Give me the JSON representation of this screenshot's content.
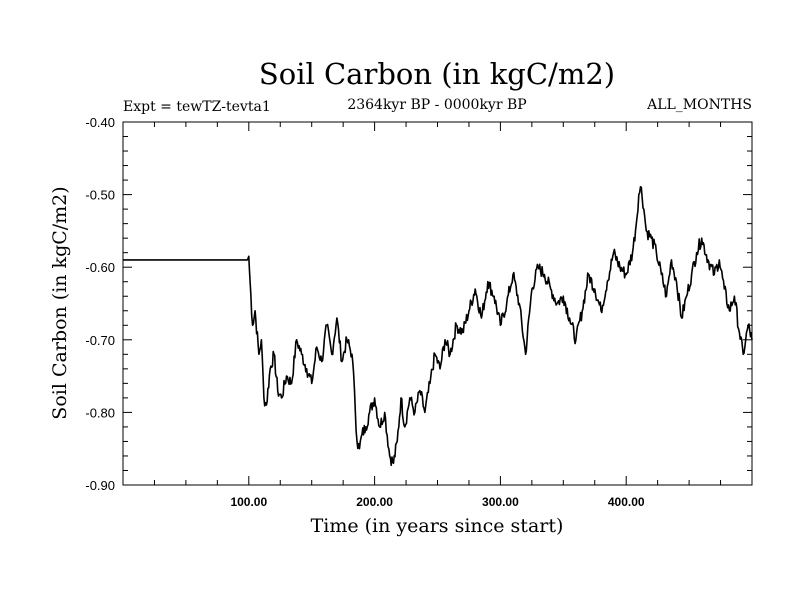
{
  "chart_data": {
    "type": "line",
    "title": "Soil Carbon (in kgC/m2)",
    "subtitle_left": "Expt = tewTZ-tevta1",
    "subtitle_center": "2364kyr BP - 0000kyr BP",
    "subtitle_right": "ALL_MONTHS",
    "xlabel": "Time (in years since start)",
    "ylabel": "Soil Carbon (in kgC/m2)",
    "xlim": [
      0,
      500
    ],
    "ylim": [
      -0.9,
      -0.4
    ],
    "x_ticks": [
      100,
      200,
      300,
      400
    ],
    "x_tick_labels": [
      "100.00",
      "200.00",
      "300.00",
      "400.00"
    ],
    "y_ticks": [
      -0.4,
      -0.5,
      -0.6,
      -0.7,
      -0.8,
      -0.9
    ],
    "y_tick_labels": [
      "-0.40",
      "-0.50",
      "-0.60",
      "-0.70",
      "-0.80",
      "-0.90"
    ],
    "series": [
      {
        "name": "Soil Carbon",
        "x": [
          0,
          99,
          100,
          101,
          103,
          105,
          108,
          110,
          112,
          114,
          117,
          120,
          123,
          126,
          130,
          134,
          138,
          142,
          146,
          150,
          154,
          158,
          162,
          166,
          170,
          174,
          178,
          182,
          184,
          186,
          188,
          190,
          193,
          196,
          200,
          204,
          208,
          212,
          215,
          218,
          221,
          224,
          228,
          232,
          236,
          240,
          244,
          248,
          252,
          256,
          260,
          265,
          270,
          275,
          280,
          285,
          290,
          295,
          300,
          305,
          310,
          315,
          320,
          325,
          330,
          335,
          340,
          345,
          350,
          355,
          360,
          365,
          370,
          375,
          380,
          385,
          390,
          395,
          400,
          405,
          408,
          410,
          412,
          414,
          416,
          420,
          424,
          428,
          432,
          436,
          440,
          444,
          448,
          452,
          456,
          460,
          465,
          470,
          474,
          478,
          482,
          486,
          490,
          493,
          495,
          497,
          500
        ],
        "values": [
          -0.59,
          -0.59,
          -0.585,
          -0.62,
          -0.68,
          -0.66,
          -0.72,
          -0.7,
          -0.78,
          -0.79,
          -0.74,
          -0.72,
          -0.77,
          -0.78,
          -0.75,
          -0.76,
          -0.7,
          -0.72,
          -0.74,
          -0.76,
          -0.71,
          -0.73,
          -0.68,
          -0.72,
          -0.67,
          -0.73,
          -0.7,
          -0.72,
          -0.77,
          -0.84,
          -0.85,
          -0.83,
          -0.82,
          -0.8,
          -0.78,
          -0.82,
          -0.8,
          -0.86,
          -0.87,
          -0.84,
          -0.78,
          -0.82,
          -0.78,
          -0.8,
          -0.77,
          -0.8,
          -0.76,
          -0.72,
          -0.74,
          -0.7,
          -0.72,
          -0.68,
          -0.69,
          -0.66,
          -0.63,
          -0.67,
          -0.62,
          -0.64,
          -0.68,
          -0.65,
          -0.61,
          -0.65,
          -0.72,
          -0.63,
          -0.6,
          -0.61,
          -0.63,
          -0.65,
          -0.64,
          -0.67,
          -0.7,
          -0.66,
          -0.61,
          -0.63,
          -0.66,
          -0.62,
          -0.58,
          -0.6,
          -0.61,
          -0.58,
          -0.54,
          -0.5,
          -0.49,
          -0.52,
          -0.55,
          -0.56,
          -0.58,
          -0.61,
          -0.64,
          -0.59,
          -0.62,
          -0.67,
          -0.64,
          -0.61,
          -0.58,
          -0.56,
          -0.59,
          -0.61,
          -0.59,
          -0.63,
          -0.66,
          -0.64,
          -0.69,
          -0.72,
          -0.7,
          -0.68,
          -0.7
        ]
      }
    ]
  }
}
